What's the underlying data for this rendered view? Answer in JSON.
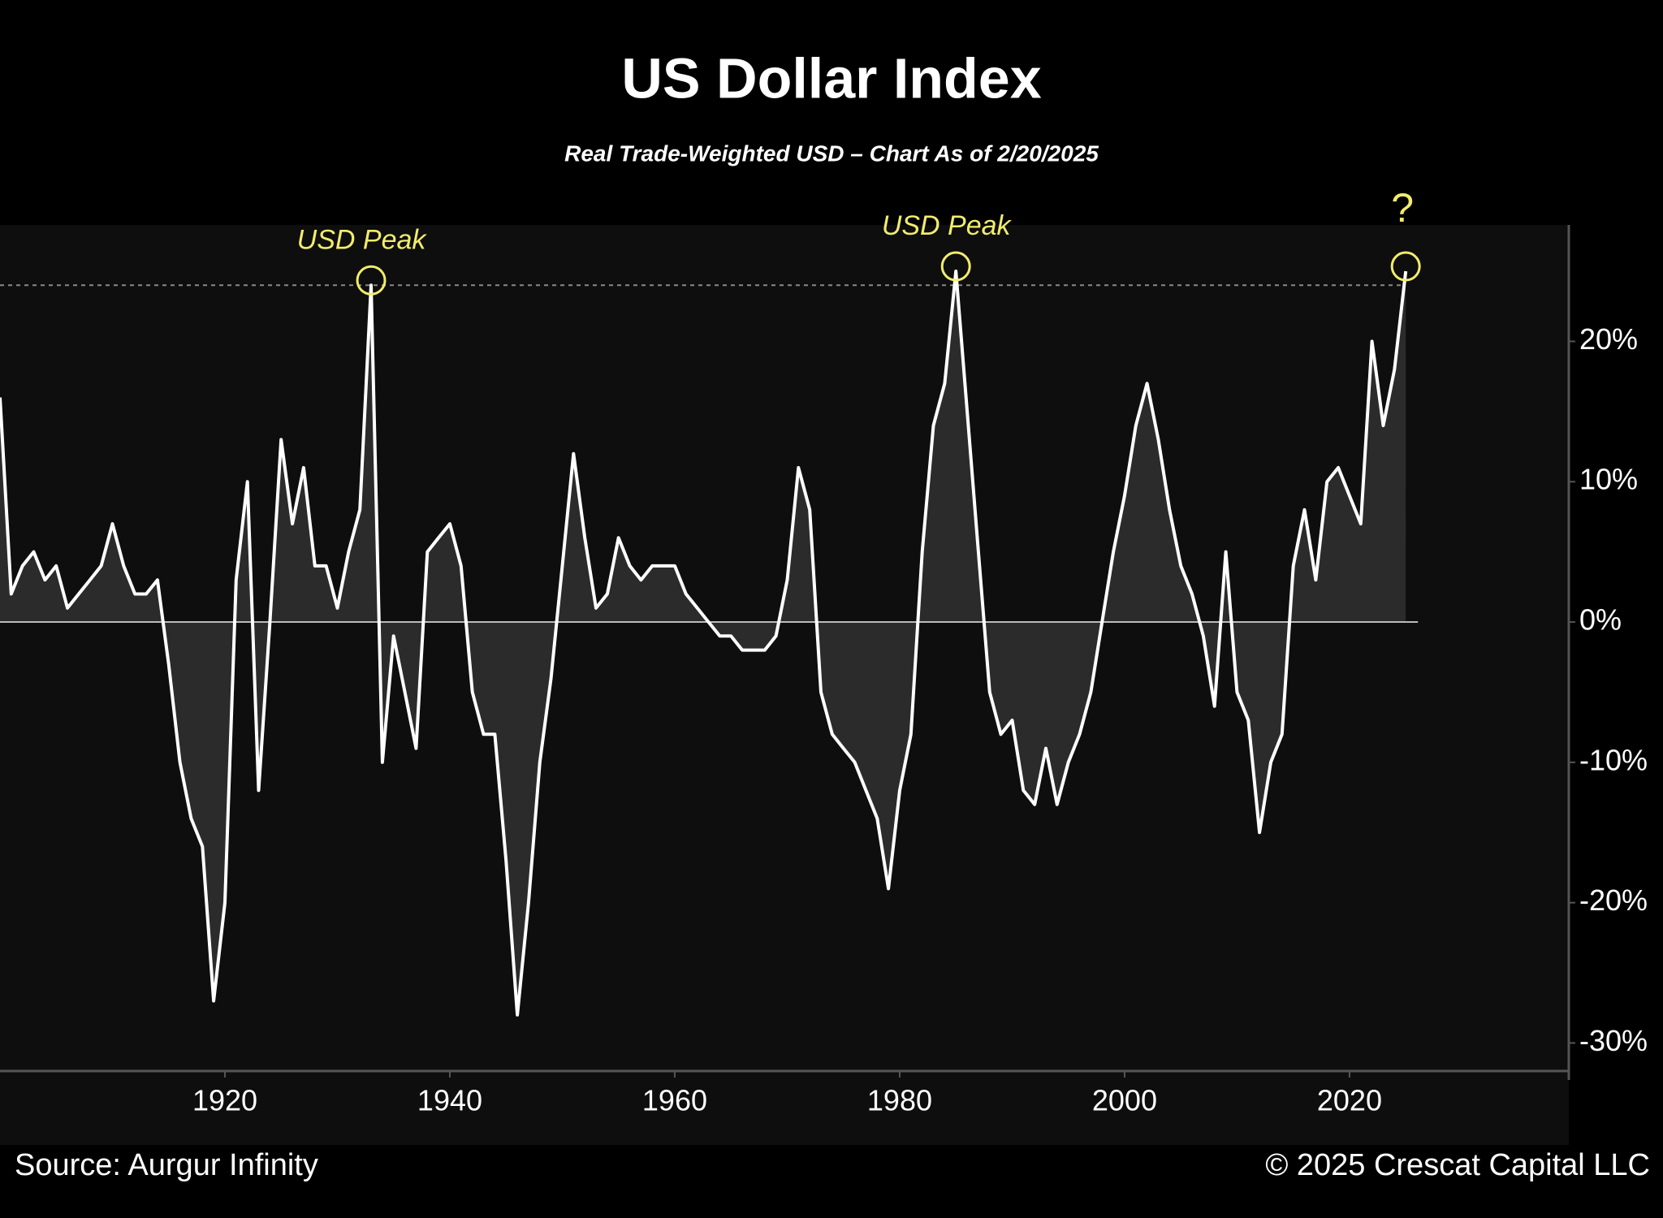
{
  "chart_data": {
    "type": "line",
    "title": "US Dollar Index",
    "subtitle": "Real Trade-Weighted USD – Chart As of 2/20/2025",
    "source": "Source: Aurgur Infinity",
    "copyright": "© 2025 Crescat Capital LLC",
    "x": [
      1900,
      1901,
      1902,
      1903,
      1904,
      1905,
      1906,
      1907,
      1908,
      1909,
      1910,
      1911,
      1912,
      1913,
      1914,
      1915,
      1916,
      1917,
      1918,
      1919,
      1920,
      1921,
      1922,
      1923,
      1924,
      1925,
      1926,
      1927,
      1928,
      1929,
      1930,
      1931,
      1932,
      1933,
      1934,
      1935,
      1936,
      1937,
      1938,
      1939,
      1940,
      1941,
      1942,
      1943,
      1944,
      1945,
      1946,
      1947,
      1948,
      1949,
      1950,
      1951,
      1952,
      1953,
      1954,
      1955,
      1956,
      1957,
      1958,
      1959,
      1960,
      1961,
      1962,
      1963,
      1964,
      1965,
      1966,
      1967,
      1968,
      1969,
      1970,
      1971,
      1972,
      1973,
      1974,
      1975,
      1976,
      1977,
      1978,
      1979,
      1980,
      1981,
      1982,
      1983,
      1984,
      1985,
      1986,
      1987,
      1988,
      1989,
      1990,
      1991,
      1992,
      1993,
      1994,
      1995,
      1996,
      1997,
      1998,
      1999,
      2000,
      2001,
      2002,
      2003,
      2004,
      2005,
      2006,
      2007,
      2008,
      2009,
      2010,
      2011,
      2012,
      2013,
      2014,
      2015,
      2016,
      2017,
      2018,
      2019,
      2020,
      2021,
      2022,
      2023,
      2024,
      2025
    ],
    "values": [
      16,
      2,
      4,
      5,
      3,
      4,
      1,
      2,
      3,
      4,
      7,
      4,
      2,
      2,
      3,
      -3,
      -10,
      -14,
      -16,
      -27,
      -20,
      3,
      10,
      -12,
      0,
      13,
      7,
      11,
      4,
      4,
      1,
      5,
      8,
      24,
      -10,
      -1,
      -5,
      -9,
      5,
      6,
      7,
      4,
      -5,
      -8,
      -8,
      -17,
      -28,
      -20,
      -10,
      -4,
      4,
      12,
      6,
      1,
      2,
      6,
      4,
      3,
      4,
      4,
      4,
      2,
      1,
      0,
      -1,
      -1,
      -2,
      -2,
      -2,
      -1,
      3,
      11,
      8,
      -5,
      -8,
      -9,
      -10,
      -12,
      -14,
      -19,
      -12,
      -8,
      5,
      14,
      17,
      25,
      15,
      5,
      -5,
      -8,
      -7,
      -12,
      -13,
      -9,
      -13,
      -10,
      -8,
      -5,
      0,
      5,
      9,
      14,
      17,
      13,
      8,
      4,
      2,
      -1,
      -6,
      5,
      -5,
      -7,
      -15,
      -10,
      -8,
      4,
      8,
      3,
      10,
      11,
      9,
      7,
      20,
      14,
      18,
      25
    ],
    "color": "#ffffff",
    "fill_color": "#2b2b2b",
    "xlim": [
      1900,
      2039.5
    ],
    "ylim": [
      -32,
      28.3
    ],
    "xticks": [
      1920,
      1940,
      1960,
      1980,
      2000,
      2020
    ],
    "yticks": [
      {
        "value": 20,
        "label": "20%"
      },
      {
        "value": 10,
        "label": "10%"
      },
      {
        "value": 0,
        "label": "0%"
      },
      {
        "value": -10,
        "label": "-10%"
      },
      {
        "value": -20,
        "label": "-20%"
      },
      {
        "value": -30,
        "label": "-30%"
      }
    ],
    "reference_line": 24,
    "annotations": [
      {
        "text": "USD Peak",
        "x": 1933,
        "y": 24
      },
      {
        "text": "USD Peak",
        "x": 1985,
        "y": 25
      },
      {
        "text": "?",
        "x": 2025,
        "y": 25
      }
    ],
    "annotation_color": "#f2ec6c"
  }
}
